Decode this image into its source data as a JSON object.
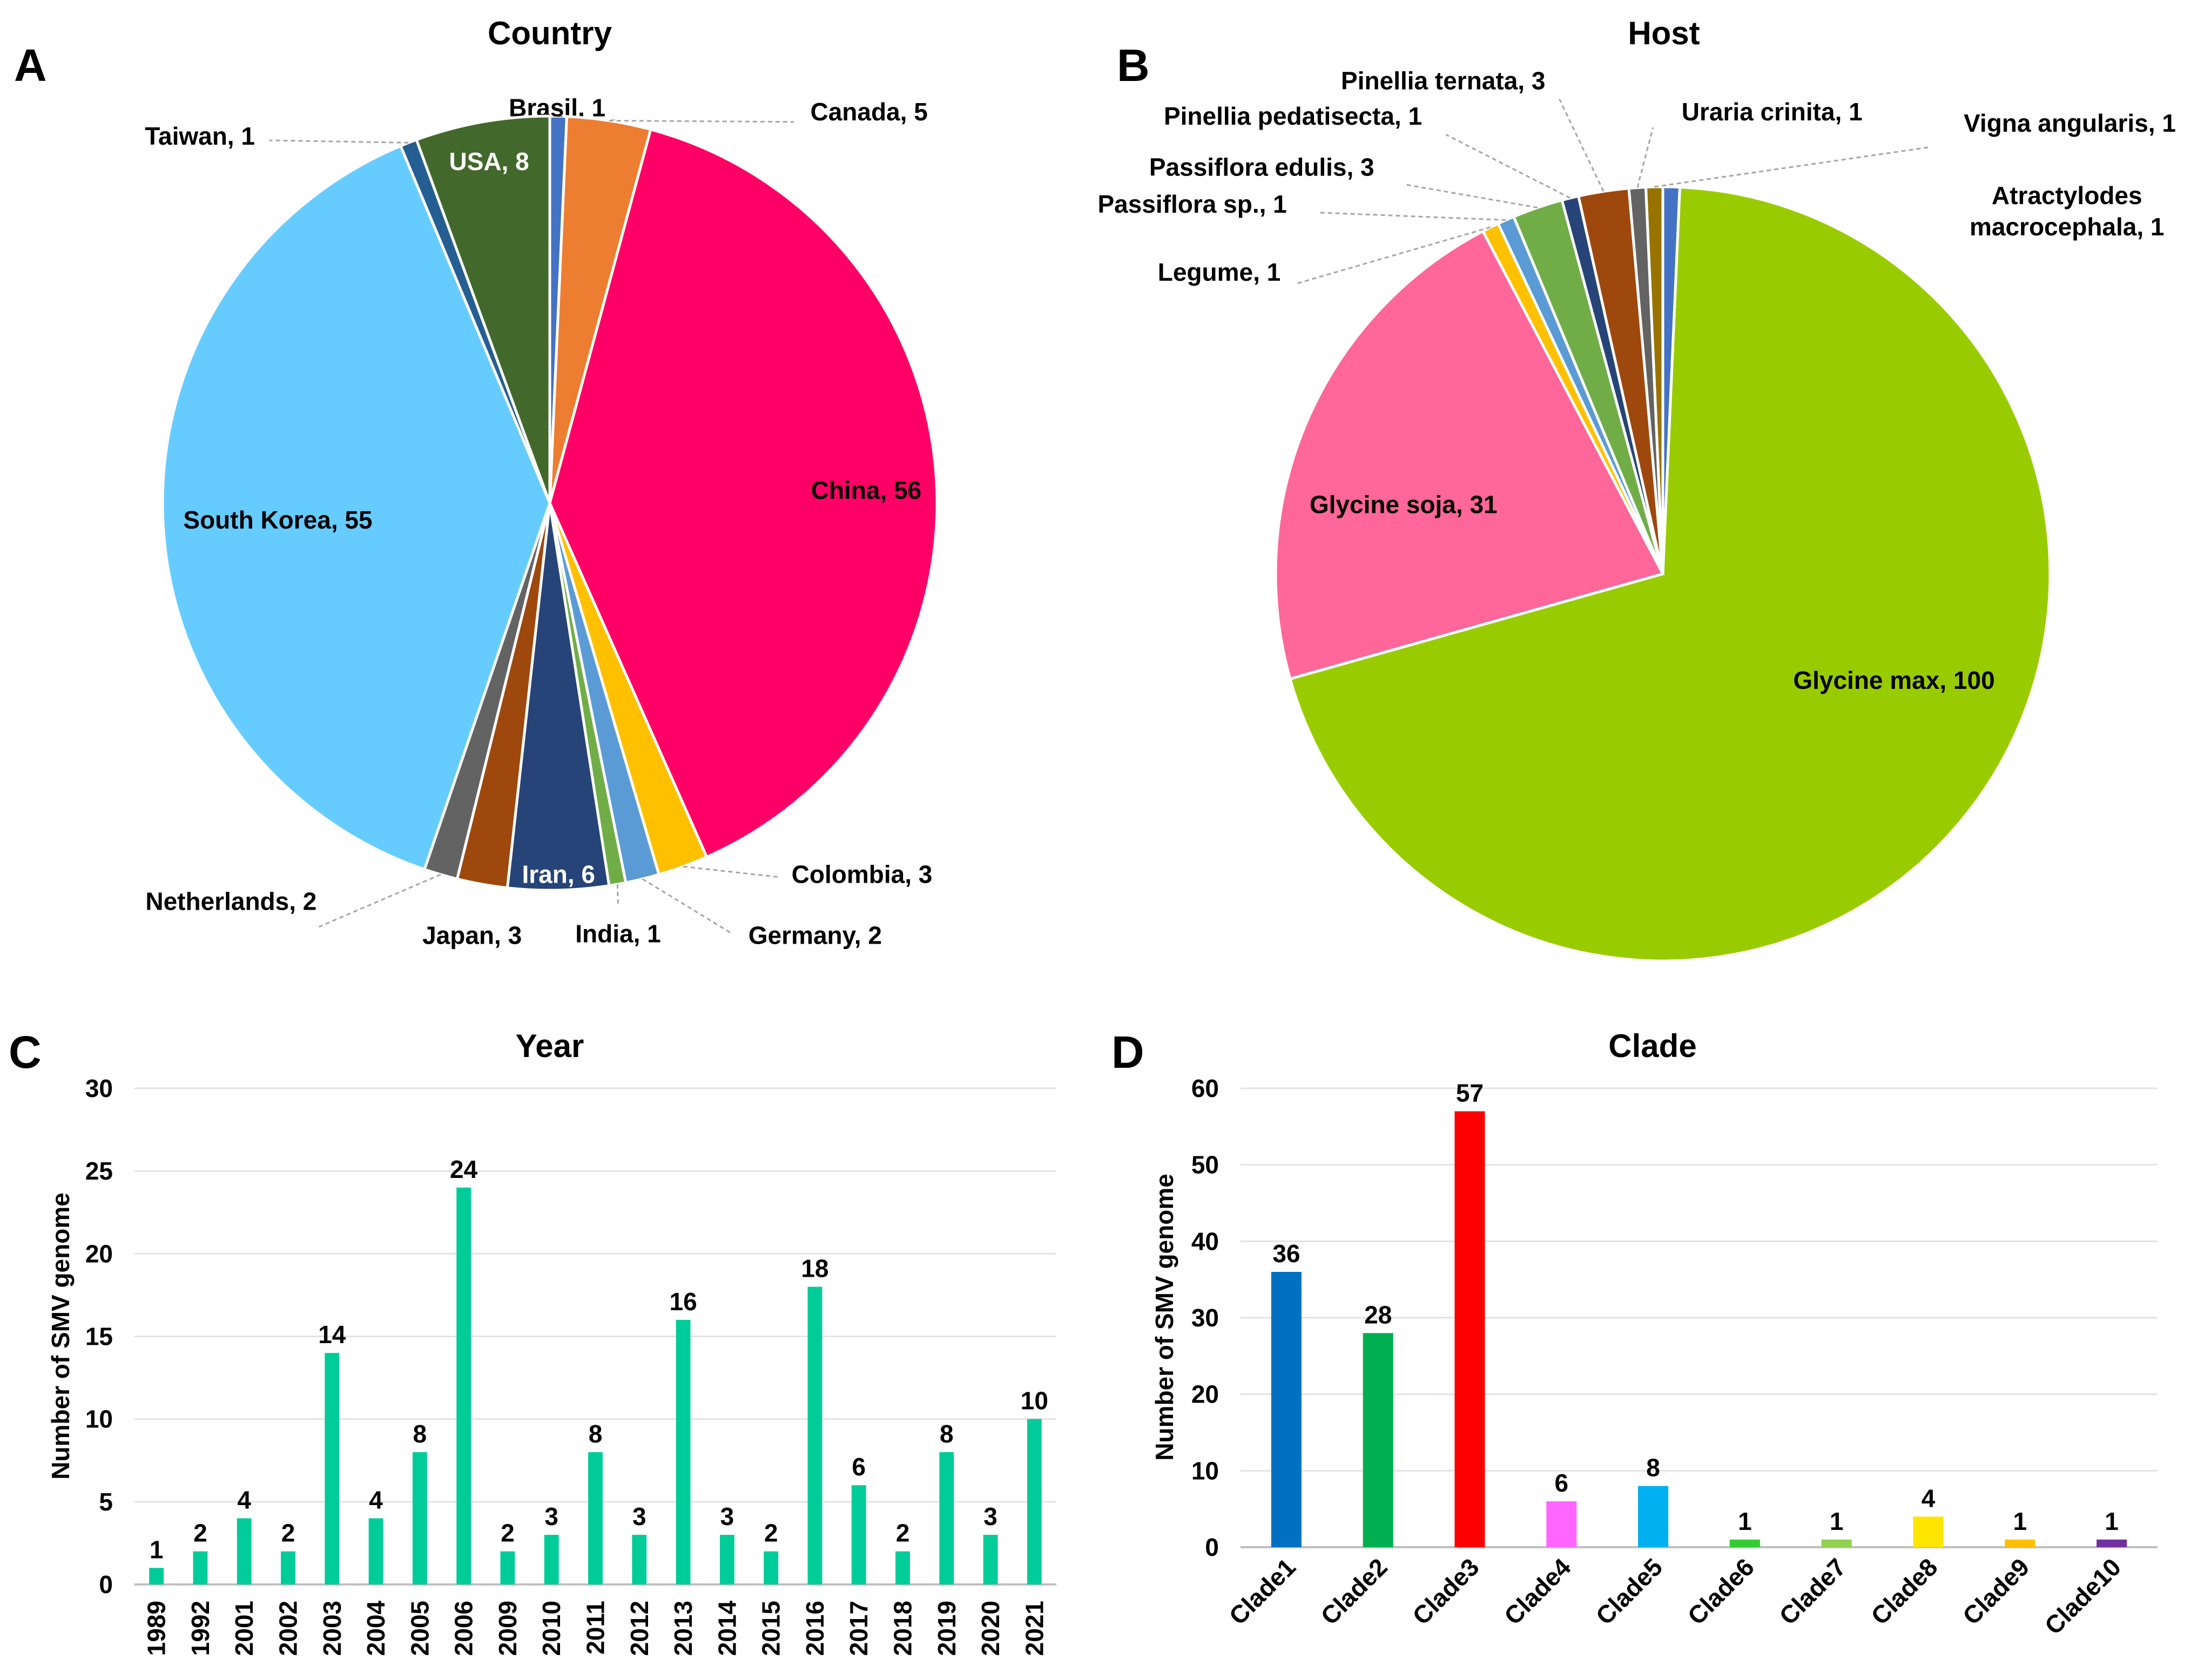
{
  "chart_data": [
    {
      "panel": "A",
      "type": "pie",
      "title": "Country",
      "slices": [
        {
          "label": "Brasil",
          "value": 1,
          "color": "#4472C4"
        },
        {
          "label": "Canada",
          "value": 5,
          "color": "#ED7D31"
        },
        {
          "label": "China",
          "value": 56,
          "color": "#FF0066"
        },
        {
          "label": "Colombia",
          "value": 3,
          "color": "#FFC000"
        },
        {
          "label": "Germany",
          "value": 2,
          "color": "#5B9BD5"
        },
        {
          "label": "India",
          "value": 1,
          "color": "#70AD47"
        },
        {
          "label": "Iran",
          "value": 6,
          "color": "#264478"
        },
        {
          "label": "Japan",
          "value": 3,
          "color": "#9E480E"
        },
        {
          "label": "Netherlands",
          "value": 2,
          "color": "#636363"
        },
        {
          "label": "South Korea",
          "value": 55,
          "color": "#66CCFF"
        },
        {
          "label": "Taiwan",
          "value": 1,
          "color": "#255E91"
        },
        {
          "label": "USA",
          "value": 8,
          "color": "#43682B"
        }
      ],
      "data_labels": [
        "Brasil, 1",
        "Canada, 5",
        "China, 56",
        "Colombia, 3",
        "Germany, 2",
        "India, 1",
        "Iran, 6",
        "Japan, 3",
        "Netherlands, 2",
        "South Korea, 55",
        "Taiwan, 1",
        "USA, 8"
      ]
    },
    {
      "panel": "B",
      "type": "pie",
      "title": "Host",
      "slices": [
        {
          "label": "Atractylodes macrocephala",
          "value": 1,
          "color": "#4472C4"
        },
        {
          "label": "Glycine max",
          "value": 100,
          "color": "#99CC00"
        },
        {
          "label": "Glycine soja",
          "value": 31,
          "color": "#FF6699"
        },
        {
          "label": "Legume",
          "value": 1,
          "color": "#FFC000"
        },
        {
          "label": "Passiflora sp.",
          "value": 1,
          "color": "#5B9BD5"
        },
        {
          "label": "Passiflora edulis",
          "value": 3,
          "color": "#70AD47"
        },
        {
          "label": "Pinellia pedatisecta",
          "value": 1,
          "color": "#264478"
        },
        {
          "label": "Pinellia ternata",
          "value": 3,
          "color": "#9E480E"
        },
        {
          "label": "Uraria crinita",
          "value": 1,
          "color": "#636363"
        },
        {
          "label": "Vigna angularis",
          "value": 1,
          "color": "#997300"
        }
      ],
      "data_labels": [
        "Atractylodes|macrocephala, 1",
        "Glycine max, 100",
        "Glycine soja, 31",
        "Legume, 1",
        "Passiflora sp., 1",
        "Passiflora edulis, 3",
        "Pinellia pedatisecta, 1",
        "Pinellia ternata, 3",
        "Uraria crinita, 1",
        "Vigna angularis, 1"
      ]
    },
    {
      "panel": "C",
      "type": "bar",
      "title": "Year",
      "xlabel": "",
      "ylabel": "Number of SMV genome",
      "ylim": [
        0,
        30
      ],
      "yticks": [
        0,
        5,
        10,
        15,
        20,
        25,
        30
      ],
      "grid": true,
      "color": "#00CC99",
      "categories": [
        "1989",
        "1992",
        "2001",
        "2002",
        "2003",
        "2004",
        "2005",
        "2006",
        "2009",
        "2010",
        "2011",
        "2012",
        "2013",
        "2014",
        "2015",
        "2016",
        "2017",
        "2018",
        "2019",
        "2020",
        "2021"
      ],
      "values": [
        1,
        2,
        4,
        2,
        14,
        4,
        8,
        24,
        2,
        3,
        8,
        3,
        16,
        3,
        2,
        18,
        6,
        2,
        8,
        3,
        10
      ]
    },
    {
      "panel": "D",
      "type": "bar",
      "title": "Clade",
      "xlabel": "",
      "ylabel": "Number of SMV genome",
      "ylim": [
        0,
        60
      ],
      "yticks": [
        0,
        10,
        20,
        30,
        40,
        50,
        60
      ],
      "grid": true,
      "categories": [
        "Clade1",
        "Clade2",
        "Clade3",
        "Clade4",
        "Clade5",
        "Clade6",
        "Clade7",
        "Clade8",
        "Clade9",
        "Clade10"
      ],
      "values": [
        36,
        28,
        57,
        6,
        8,
        1,
        1,
        4,
        1,
        1
      ],
      "colors": [
        "#0070C0",
        "#00B050",
        "#FF0000",
        "#FF66FF",
        "#00B0F0",
        "#33CC33",
        "#92D050",
        "#FFE600",
        "#FFC000",
        "#7030A0"
      ]
    }
  ]
}
